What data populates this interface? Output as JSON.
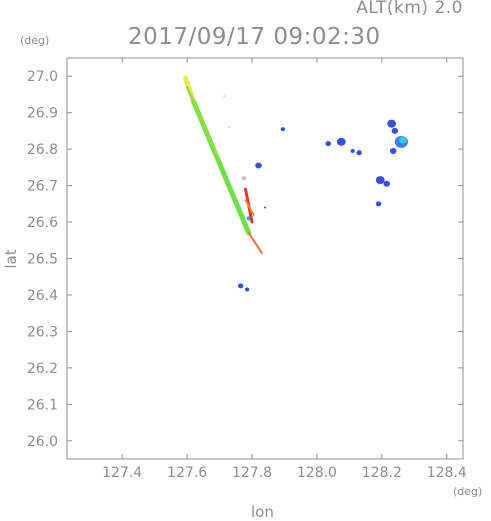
{
  "header": {
    "alt_label": "ALT(km) 2.0",
    "timestamp": "2017/09/17 09:02:30"
  },
  "chart_data": {
    "type": "scatter",
    "title": "2017/09/17 09:02:30",
    "subtitle": "ALT(km) 2.0",
    "xlabel": "lon",
    "ylabel": "lat",
    "x_unit": "(deg)",
    "y_unit": "(deg)",
    "xlim": [
      127.23,
      128.45
    ],
    "ylim": [
      25.95,
      27.05
    ],
    "xticks": [
      127.4,
      127.6,
      127.8,
      128.0,
      128.2,
      128.4
    ],
    "yticks": [
      26.0,
      26.1,
      26.2,
      26.3,
      26.4,
      26.5,
      26.6,
      26.7,
      26.8,
      26.9,
      27.0
    ],
    "grid": false,
    "colors": {
      "axis": "#8c8c8c",
      "echo_weak": "#3a4ee0",
      "echo_mid": "#3aa8f0",
      "echo_green": "#6ee04a",
      "echo_yellow": "#e8e85a",
      "echo_orange": "#f07a30",
      "echo_red": "#d83a2a"
    },
    "series": [
      {
        "kind": "line-echo",
        "segments": [
          {
            "color": "#e8e85a",
            "width": 5,
            "points": [
              [
                127.595,
                26.995
              ],
              [
                127.62,
                26.93
              ]
            ]
          },
          {
            "color": "#6ee04a",
            "width": 5,
            "points": [
              [
                127.62,
                26.93
              ],
              [
                127.79,
                26.57
              ]
            ]
          },
          {
            "color": "#9ad848",
            "width": 2.5,
            "points": [
              [
                127.6,
                26.97
              ],
              [
                127.7,
                26.77
              ]
            ]
          },
          {
            "color": "#e07040",
            "width": 2,
            "points": [
              [
                127.79,
                26.57
              ],
              [
                127.83,
                26.515
              ]
            ]
          },
          {
            "color": "#d83a2a",
            "width": 3,
            "points": [
              [
                127.78,
                26.69
              ],
              [
                127.8,
                26.6
              ]
            ]
          },
          {
            "color": "#f08a3a",
            "width": 2,
            "points": [
              [
                127.78,
                26.66
              ],
              [
                127.805,
                26.62
              ]
            ]
          }
        ]
      },
      {
        "kind": "cells",
        "points": [
          {
            "lon": 127.715,
            "lat": 26.945,
            "r": 1,
            "color": "#d8d8a0"
          },
          {
            "lon": 127.73,
            "lat": 26.86,
            "r": 1,
            "color": "#d8d8a0"
          },
          {
            "lon": 127.82,
            "lat": 26.755,
            "r": 3,
            "color": "#3a4ee0"
          },
          {
            "lon": 127.84,
            "lat": 26.64,
            "r": 1,
            "color": "#3a4ee0"
          },
          {
            "lon": 127.895,
            "lat": 26.855,
            "r": 2,
            "color": "#3a4ee0"
          },
          {
            "lon": 127.775,
            "lat": 26.72,
            "r": 2,
            "color": "#c0c0c0"
          },
          {
            "lon": 127.79,
            "lat": 26.61,
            "r": 2,
            "color": "#5a8ae8"
          },
          {
            "lon": 128.035,
            "lat": 26.815,
            "r": 2.5,
            "color": "#3a4ee0"
          },
          {
            "lon": 128.075,
            "lat": 26.82,
            "r": 4,
            "color": "#3a4ee0"
          },
          {
            "lon": 128.11,
            "lat": 26.795,
            "r": 2,
            "color": "#3a4ee0"
          },
          {
            "lon": 128.13,
            "lat": 26.79,
            "r": 2.5,
            "color": "#3a4ee0"
          },
          {
            "lon": 128.23,
            "lat": 26.87,
            "r": 4,
            "color": "#3a4ee0"
          },
          {
            "lon": 128.24,
            "lat": 26.85,
            "r": 3,
            "color": "#3a4ee0"
          },
          {
            "lon": 128.235,
            "lat": 26.795,
            "r": 3,
            "color": "#3a4ee0"
          },
          {
            "lon": 128.26,
            "lat": 26.82,
            "r": 6,
            "color": "#3a7ee8"
          },
          {
            "lon": 128.265,
            "lat": 26.825,
            "r": 3.5,
            "color": "#3ac8f0"
          },
          {
            "lon": 128.195,
            "lat": 26.715,
            "r": 4,
            "color": "#3a4ee0"
          },
          {
            "lon": 128.215,
            "lat": 26.705,
            "r": 3,
            "color": "#3a4ee0"
          },
          {
            "lon": 128.19,
            "lat": 26.65,
            "r": 2.5,
            "color": "#3a4ee0"
          },
          {
            "lon": 127.765,
            "lat": 26.425,
            "r": 2.5,
            "color": "#3a4ee0"
          },
          {
            "lon": 127.785,
            "lat": 26.415,
            "r": 2,
            "color": "#3a4ee0"
          }
        ]
      }
    ]
  }
}
